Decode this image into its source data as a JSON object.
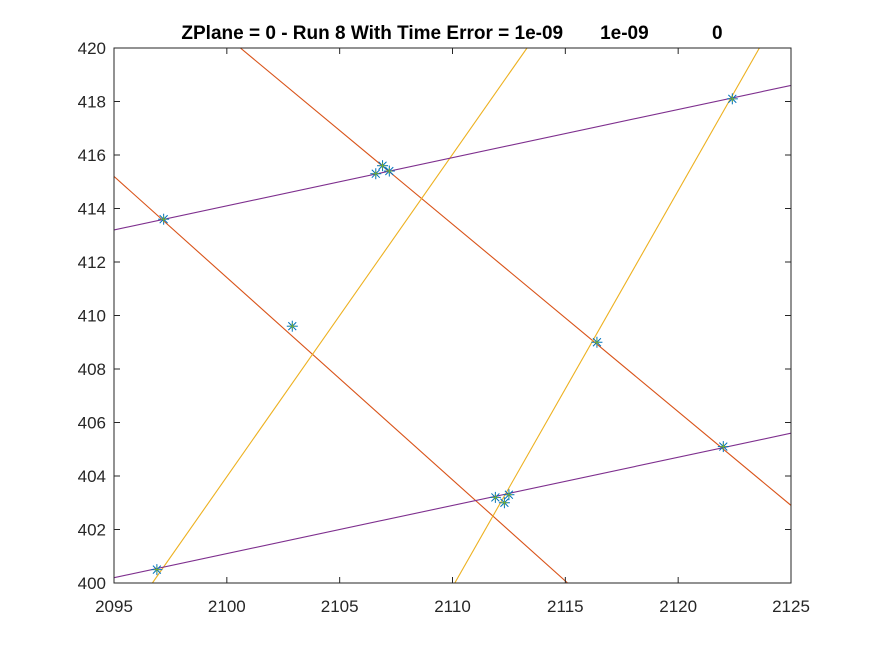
{
  "chart_data": {
    "type": "line",
    "title": "ZPlane = 0 - Run 8 With Time Error = 1e-09       1e-09            0",
    "xlabel": "",
    "ylabel": "",
    "xlim": [
      2095,
      2125
    ],
    "ylim": [
      400,
      420
    ],
    "x_ticks": [
      2095,
      2100,
      2105,
      2110,
      2115,
      2120,
      2125
    ],
    "y_ticks": [
      400,
      402,
      404,
      406,
      408,
      410,
      412,
      414,
      416,
      418,
      420
    ],
    "grid": false,
    "legend": "none",
    "colors": {
      "orange": "#D95319",
      "yellow": "#EDB120",
      "purple": "#7E2F8E",
      "marker_blue": "#0072BD",
      "marker_green": "#77AC30",
      "axis": "#262626"
    },
    "series": [
      {
        "color": "orange",
        "x": [
          2095,
          2115.1
        ],
        "y": [
          415.2,
          400
        ]
      },
      {
        "color": "orange",
        "x": [
          2100.6,
          2125
        ],
        "y": [
          420,
          402.9
        ]
      },
      {
        "color": "yellow",
        "x": [
          2096.7,
          2113.3
        ],
        "y": [
          400,
          420
        ]
      },
      {
        "color": "yellow",
        "x": [
          2110.1,
          2123.6
        ],
        "y": [
          400,
          420
        ]
      },
      {
        "color": "purple",
        "x": [
          2095,
          2125
        ],
        "y": [
          413.2,
          418.6
        ]
      },
      {
        "color": "purple",
        "x": [
          2095,
          2125
        ],
        "y": [
          400.2,
          405.6
        ]
      }
    ],
    "markers": [
      {
        "x": 2097.2,
        "y": 413.6
      },
      {
        "x": 2106.6,
        "y": 415.3
      },
      {
        "x": 2107.2,
        "y": 415.4
      },
      {
        "x": 2106.9,
        "y": 415.6
      },
      {
        "x": 2122.4,
        "y": 418.1
      },
      {
        "x": 2102.9,
        "y": 409.6
      },
      {
        "x": 2116.4,
        "y": 409.0
      },
      {
        "x": 2122.0,
        "y": 405.1
      },
      {
        "x": 2111.9,
        "y": 403.2
      },
      {
        "x": 2112.5,
        "y": 403.3
      },
      {
        "x": 2112.3,
        "y": 403.0
      },
      {
        "x": 2096.9,
        "y": 400.5
      }
    ]
  }
}
